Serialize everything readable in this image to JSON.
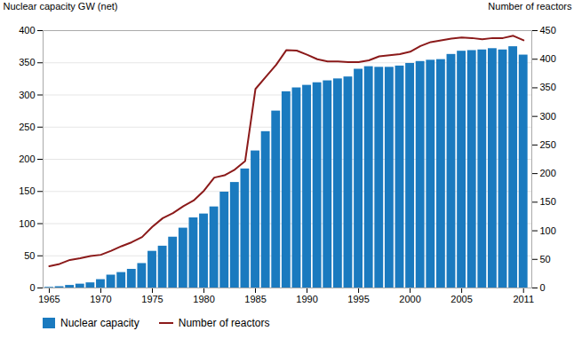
{
  "chart_data": {
    "type": "bar",
    "x": [
      1965,
      1966,
      1967,
      1968,
      1969,
      1970,
      1971,
      1972,
      1973,
      1974,
      1975,
      1976,
      1977,
      1978,
      1979,
      1980,
      1981,
      1982,
      1983,
      1984,
      1985,
      1986,
      1987,
      1988,
      1989,
      1990,
      1991,
      1992,
      1993,
      1994,
      1995,
      1996,
      1997,
      1998,
      1999,
      2000,
      2001,
      2002,
      2003,
      2004,
      2005,
      2006,
      2007,
      2008,
      2009,
      2010,
      2011
    ],
    "series": [
      {
        "name": "Nuclear capacity",
        "type": "bar",
        "color": "#1a7abf",
        "values": [
          1,
          2,
          4,
          6,
          8,
          13,
          20,
          24,
          29,
          38,
          57,
          65,
          79,
          93,
          109,
          115,
          126,
          149,
          164,
          185,
          213,
          243,
          275,
          305,
          311,
          315,
          319,
          322,
          325,
          328,
          340,
          344,
          343,
          343,
          345,
          349,
          352,
          354,
          355,
          363,
          368,
          369,
          370,
          372,
          370,
          375,
          362
        ]
      },
      {
        "name": "Number of reactors",
        "type": "line",
        "color": "#8b1a1a",
        "axis": "y2",
        "values": [
          38,
          42,
          49,
          52,
          56,
          58,
          65,
          73,
          80,
          89,
          107,
          122,
          131,
          143,
          153,
          170,
          193,
          197,
          207,
          222,
          348,
          369,
          390,
          416,
          415,
          408,
          400,
          396,
          396,
          395,
          395,
          398,
          405,
          407,
          409,
          413,
          423,
          430,
          433,
          436,
          438,
          437,
          435,
          437,
          437,
          441,
          433
        ]
      }
    ],
    "xlim": [
      1964.4,
      2011.8
    ],
    "xticks": [
      1965,
      1970,
      1975,
      1980,
      1985,
      1990,
      1995,
      2000,
      2005,
      2011
    ],
    "ylim": [
      0,
      400
    ],
    "yticks": [
      0,
      50,
      100,
      150,
      200,
      250,
      300,
      350,
      400
    ],
    "y2lim": [
      0,
      450
    ],
    "y2ticks": [
      0,
      50,
      100,
      150,
      200,
      250,
      300,
      350,
      400,
      450
    ],
    "ylabel": "Nuclear capacity GW (net)",
    "y2label": "Number of reactors",
    "grid": true,
    "legend": "bottom"
  }
}
